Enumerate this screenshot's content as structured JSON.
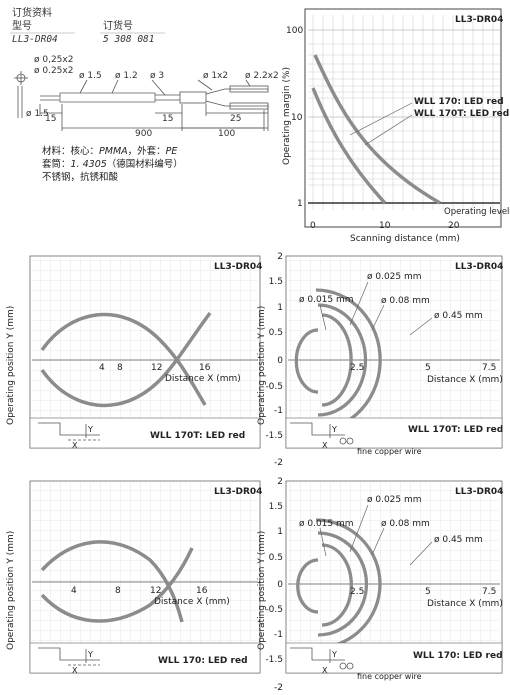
{
  "order": {
    "data_label": "订货资料",
    "model_label": "型号",
    "model": "LL3-DR04",
    "order_no_label": "订货号",
    "order_no": "5 308 081"
  },
  "drawing": {
    "dia_025x2_a": "ø 0,25x2",
    "dia_025x2_b": "ø 0.25x2",
    "dia_15": "ø 1.5",
    "dia_12": "ø 1.2",
    "dia_3": "ø 3",
    "dia_1x2": "ø 1x2",
    "dia_22x2": "ø 2.2x2",
    "dia_15_tip": "ø 1.5",
    "len_15_a": "15",
    "len_900": "900",
    "len_15_b": "15",
    "len_25": "25",
    "len_100": "100"
  },
  "materials": {
    "line1_prefix": "材料：核心：",
    "line1_core": "PMMA",
    "line1_mid": "，外套：",
    "line1_sheath": "PE",
    "line2_prefix": "套筒：",
    "line2_no": "1. 4305",
    "line2_suffix": "（德国材料编号）",
    "line3": "不锈钢，抗锈和酸"
  },
  "panels": {
    "margin": {
      "title": "LL3-DR04",
      "ylabel": "Operating margin (%)",
      "xlabel": "Scanning distance (mm)",
      "y_ticks": [
        "100",
        "10",
        "1"
      ],
      "x_ticks": [
        "0",
        "10",
        "20"
      ],
      "curve_label_1": "WLL 170: LED red",
      "curve_label_2": "WLL 170T: LED red",
      "level_label": "Operating level"
    },
    "fish_top": {
      "title": "LL3-DR04",
      "ylabel": "Operating position Y (mm)",
      "xlabel": "Distance X (mm)",
      "x_ticks": [
        "4",
        "8",
        "12",
        "16"
      ],
      "caption": "WLL 170T: LED red",
      "axis_y": "Y",
      "axis_x": "X"
    },
    "rings_top": {
      "title": "LL3-DR04",
      "ylabel": "Operating position Y (mm)",
      "xlabel": "Distance X (mm)",
      "y_ticks": [
        "2",
        "1.5",
        "1",
        "0.5",
        "0",
        "-0.5",
        "-1",
        "-1.5",
        "-2"
      ],
      "x_ticks": [
        "2.5",
        "5",
        "7.5"
      ],
      "ring_1": "ø 0.015 mm",
      "ring_2": "ø 0.025 mm",
      "ring_3": "ø 0.08 mm",
      "ring_4": "ø 0.45 mm",
      "caption": "WLL 170T: LED red",
      "wire_label": "fine copper wire",
      "axis_y": "Y",
      "axis_x": "X"
    },
    "fish_bottom": {
      "title": "LL3-DR04",
      "ylabel": "Operating position Y (mm)",
      "xlabel": "Distance X (mm)",
      "x_ticks": [
        "4",
        "8",
        "12",
        "16"
      ],
      "caption": "WLL 170: LED red",
      "axis_y": "Y",
      "axis_x": "X"
    },
    "rings_bottom": {
      "title": "LL3-DR04",
      "ylabel": "Operating position Y (mm)",
      "xlabel": "Distance X (mm)",
      "y_ticks": [
        "2",
        "1.5",
        "1",
        "0.5",
        "0",
        "-0.5",
        "-1",
        "-1.5",
        "-2"
      ],
      "x_ticks": [
        "2.5",
        "5",
        "7.5"
      ],
      "ring_1": "ø 0.015 mm",
      "ring_2": "ø 0.025 mm",
      "ring_3": "ø 0.08 mm",
      "ring_4": "ø 0.45 mm",
      "caption": "WLL 170: LED red",
      "wire_label": "fine copper wire",
      "axis_y": "Y",
      "axis_x": "X"
    }
  },
  "colors": {
    "curve": "#8c8c8c",
    "grid": "#cfcfcf",
    "frame": "#444444",
    "text": "#222222"
  }
}
